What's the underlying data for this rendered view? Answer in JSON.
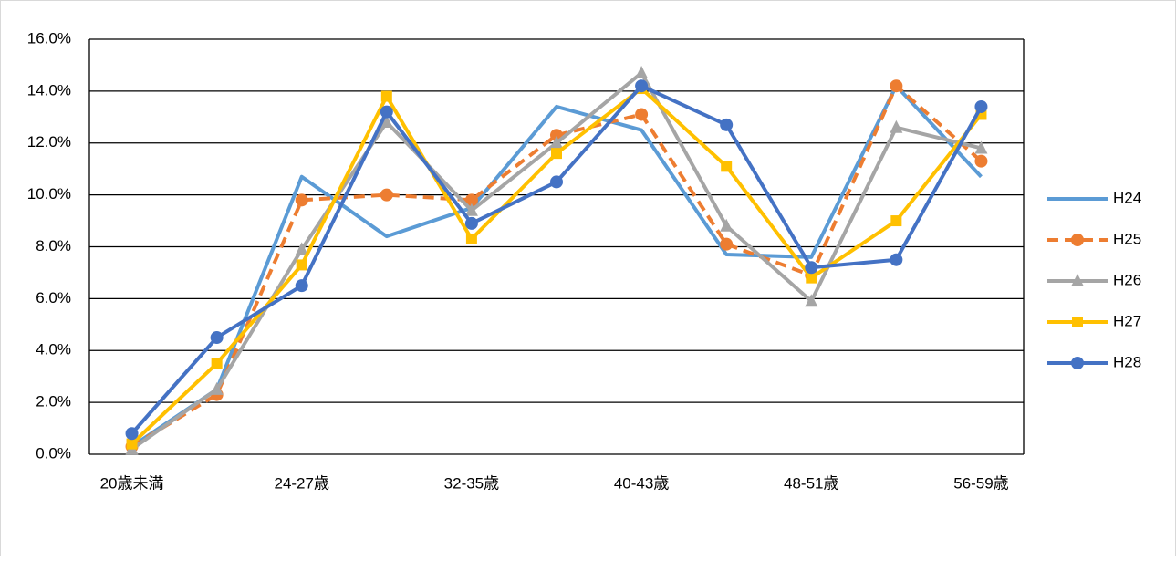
{
  "chart_data": {
    "type": "line",
    "categories": [
      "20歳未満",
      null,
      "24-27歳",
      null,
      "32-35歳",
      null,
      "40-43歳",
      null,
      "48-51歳",
      null,
      "56-59歳"
    ],
    "series": [
      {
        "name": "H24",
        "color": "#5B9BD5",
        "marker": "none",
        "dashed": false,
        "values": [
          0.3,
          2.5,
          10.7,
          8.4,
          9.5,
          13.4,
          12.5,
          7.7,
          7.6,
          14.2,
          10.7
        ]
      },
      {
        "name": "H25",
        "color": "#ED7D31",
        "marker": "circle",
        "dashed": true,
        "values": [
          0.3,
          2.3,
          9.8,
          10.0,
          9.8,
          12.3,
          13.1,
          8.1,
          6.9,
          14.2,
          11.3
        ]
      },
      {
        "name": "H26",
        "color": "#A5A5A5",
        "marker": "triangle",
        "dashed": false,
        "values": [
          0.2,
          2.5,
          7.9,
          12.8,
          9.4,
          12.0,
          14.7,
          8.8,
          5.9,
          12.6,
          11.8
        ]
      },
      {
        "name": "H27",
        "color": "#FFC000",
        "marker": "square",
        "dashed": false,
        "values": [
          0.4,
          3.5,
          7.3,
          13.8,
          8.3,
          11.6,
          14.1,
          11.1,
          6.8,
          9.0,
          13.1
        ]
      },
      {
        "name": "H28",
        "color": "#4472C4",
        "marker": "circle",
        "dashed": false,
        "values": [
          0.8,
          4.5,
          6.5,
          13.2,
          8.9,
          10.5,
          14.2,
          12.7,
          7.2,
          7.5,
          13.4
        ]
      }
    ],
    "ylim": [
      0,
      16
    ],
    "yticks": [
      {
        "value": 0,
        "label": "0.0%"
      },
      {
        "value": 2,
        "label": "2.0%"
      },
      {
        "value": 4,
        "label": "4.0%"
      },
      {
        "value": 6,
        "label": "6.0%"
      },
      {
        "value": 8,
        "label": "8.0%"
      },
      {
        "value": 10,
        "label": "10.0%"
      },
      {
        "value": 12,
        "label": "12.0%"
      },
      {
        "value": 14,
        "label": "14.0%"
      },
      {
        "value": 16,
        "label": "16.0%"
      }
    ],
    "grid": true,
    "legend": "right"
  }
}
